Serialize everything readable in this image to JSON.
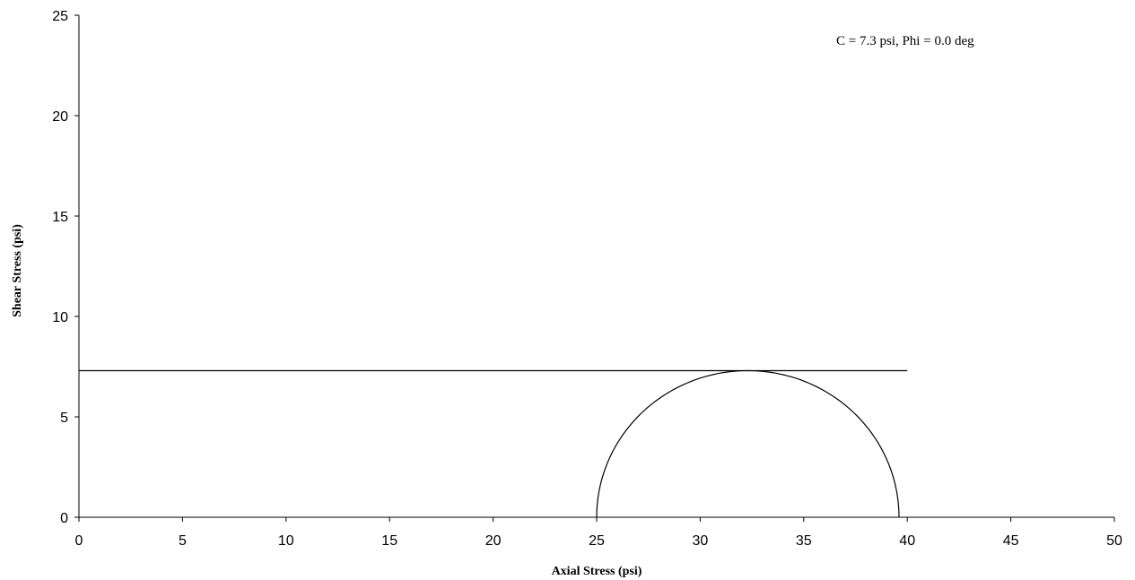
{
  "chart_data": {
    "type": "line",
    "title": "",
    "xlabel": "Axial Stress (psi)",
    "ylabel": "Shear Stress (psi)",
    "xlim": [
      0,
      50
    ],
    "ylim": [
      0,
      25
    ],
    "xticks": [
      0,
      5,
      10,
      15,
      20,
      25,
      30,
      35,
      40,
      45,
      50
    ],
    "yticks": [
      0,
      5,
      10,
      15,
      20,
      25
    ],
    "grid": false,
    "legend": "none",
    "annotation": "C = 7.3 psi, Phi = 0.0 deg",
    "series": [
      {
        "kind": "envelope-line",
        "x": [
          0,
          40
        ],
        "y": [
          7.3,
          7.3
        ]
      },
      {
        "kind": "mohr-circle",
        "center": 32.3,
        "radius": 7.3,
        "x_range": [
          25.0,
          39.6
        ]
      }
    ],
    "colors": {
      "line": "#000000"
    }
  }
}
